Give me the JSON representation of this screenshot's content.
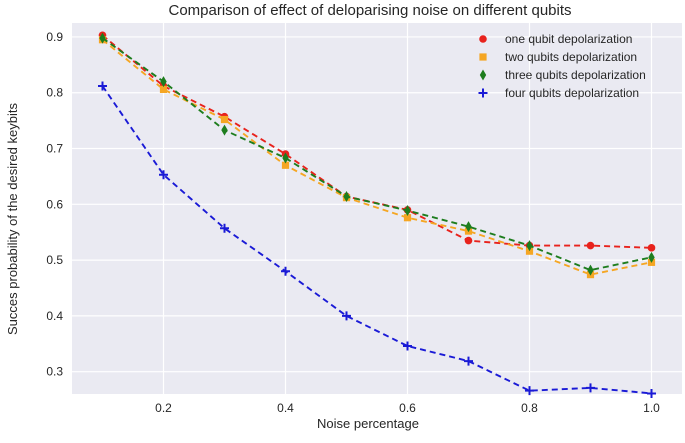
{
  "chart_data": {
    "type": "line",
    "title": "Comparison of effect of deloparising noise on different qubits",
    "xlabel": "Noise percentage",
    "ylabel": "Succes probability of the desired keybits",
    "xlim": [
      0.05,
      1.05
    ],
    "ylim": [
      0.26,
      0.925
    ],
    "xticks": [
      0.2,
      0.4,
      0.6,
      0.8,
      1.0
    ],
    "xtick_labels": [
      "0.2",
      "0.4",
      "0.6",
      "0.8",
      "1.0"
    ],
    "yticks": [
      0.3,
      0.4,
      0.5,
      0.6,
      0.7,
      0.8,
      0.9
    ],
    "ytick_labels": [
      "0.3",
      "0.4",
      "0.5",
      "0.6",
      "0.7",
      "0.8",
      "0.9"
    ],
    "grid": true,
    "legend_position": "top-right",
    "x": [
      0.1,
      0.2,
      0.3,
      0.4,
      0.5,
      0.6,
      0.7,
      0.8,
      0.9,
      1.0
    ],
    "series": [
      {
        "name": "one qubit depolarization",
        "color": "#e8221c",
        "marker": "circle",
        "values": [
          0.903,
          0.812,
          0.757,
          0.69,
          0.614,
          0.59,
          0.535,
          0.526,
          0.526,
          0.522
        ]
      },
      {
        "name": "two qubits depolarization",
        "color": "#f5a623",
        "marker": "square",
        "values": [
          0.895,
          0.806,
          0.752,
          0.67,
          0.612,
          0.576,
          0.552,
          0.516,
          0.474,
          0.496
        ]
      },
      {
        "name": "three qubits depolarization",
        "color": "#1e7d1e",
        "marker": "thin-diamond",
        "values": [
          0.898,
          0.82,
          0.733,
          0.683,
          0.614,
          0.589,
          0.56,
          0.526,
          0.482,
          0.505
        ]
      },
      {
        "name": "four qubits depolarization",
        "color": "#1a1ad6",
        "marker": "plus",
        "values": [
          0.812,
          0.653,
          0.557,
          0.48,
          0.4,
          0.346,
          0.319,
          0.266,
          0.271,
          0.261
        ]
      }
    ]
  }
}
